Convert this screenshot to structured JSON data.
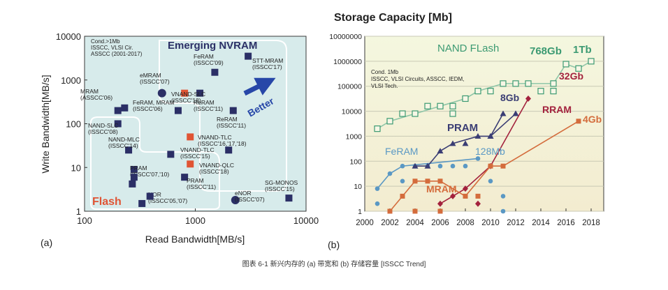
{
  "caption": "图表 6-1 新兴内存的 (a) 带宽和 (b) 存储容量 [ISSCC Trend]",
  "colors": {
    "chart_bg_a": "#d9ecec",
    "chart_bg_b": "#f8f6da",
    "region_line": "#ffffff",
    "navy": "#2b2f66",
    "red": "#e05434",
    "blue": "#2747a8",
    "green": "#3c9a72",
    "greenline": "#8fc6a8",
    "lightblue": "#5a98c4",
    "rram": "#a3223d",
    "mram": "#d46c3c",
    "pram": "#3a3d74"
  },
  "chart_data": [
    {
      "type": "scatter",
      "panel_label": "(a)",
      "xlabel": "Read Bandwidth[MB/s]",
      "ylabel": "Write Bandwidth[MB/s]",
      "xscale": "log",
      "yscale": "log",
      "xlim": [
        100,
        10000
      ],
      "ylim": [
        1,
        10000
      ],
      "xticks": [
        "100",
        "1000",
        "10000"
      ],
      "yticks": [
        "1",
        "10",
        "100",
        "1000",
        "10000"
      ],
      "note": [
        "Cond.>1Mb",
        "ISSCC, VLSI Cir.",
        "ASSCC (2001-2017)"
      ],
      "regions": [
        "Emerging NVRAM",
        "Flash"
      ],
      "arrow_label": "Better",
      "points": [
        {
          "x": 230,
          "y": 230,
          "shape": "square",
          "color": "navy",
          "label": [
            "MRAM",
            "(ASSCC'06)"
          ],
          "lx": 115,
          "ly": 134
        },
        {
          "x": 200,
          "y": 200,
          "shape": "square",
          "color": "navy"
        },
        {
          "x": 200,
          "y": 100,
          "shape": "square",
          "color": "navy",
          "label": [
            "NAND-SLC",
            "(ISSCC'08)"
          ],
          "lx": 126,
          "ly": 183
        },
        {
          "x": 250,
          "y": 25,
          "shape": "square",
          "color": "navy",
          "label": [
            "NAND-MLC",
            "(ISSCC'14)"
          ],
          "lx": 155,
          "ly": 203
        },
        {
          "x": 280,
          "y": 9,
          "shape": "square",
          "color": "navy",
          "label": [
            "PRAM",
            "(ISSCC'07,'10)"
          ],
          "lx": 186,
          "ly": 244
        },
        {
          "x": 280,
          "y": 6,
          "shape": "square",
          "color": "navy"
        },
        {
          "x": 270,
          "y": 4.2,
          "shape": "square",
          "color": "navy"
        },
        {
          "x": 330,
          "y": 1.5,
          "shape": "square",
          "color": "navy",
          "label": [
            "NOR",
            "(ISSCC'05,'07)"
          ],
          "lx": 212,
          "ly": 282
        },
        {
          "x": 390,
          "y": 2.2,
          "shape": "square",
          "color": "navy"
        },
        {
          "x": 500,
          "y": 500,
          "shape": "circle",
          "color": "navy",
          "label": [
            "eMRAM",
            "(ISSCC'07)"
          ],
          "lx": 200,
          "ly": 111
        },
        {
          "x": 800,
          "y": 500,
          "shape": "square",
          "color": "red",
          "label": [
            "FeRAM, MRAM",
            "(ISSCC'06)"
          ],
          "lx": 190,
          "ly": 150
        },
        {
          "x": 1500,
          "y": 1500,
          "shape": "square",
          "color": "navy",
          "label": [
            "FeRAM",
            "(ISSCC'09)"
          ],
          "lx": 277,
          "ly": 84
        },
        {
          "x": 1100,
          "y": 500,
          "shape": "square",
          "color": "navy",
          "label": [
            "VNAND-SLC",
            "(ISSCC'18)"
          ],
          "lx": 245,
          "ly": 138
        },
        {
          "x": 700,
          "y": 200,
          "shape": "square",
          "color": "navy",
          "label": [
            "ReRAM",
            "(ISSCC'11)"
          ],
          "lx": 277,
          "ly": 150
        },
        {
          "x": 2200,
          "y": 200,
          "shape": "square",
          "color": "navy",
          "label": [
            "ReRAM",
            "(ISSCC'11)"
          ],
          "lx": 310,
          "ly": 174
        },
        {
          "x": 3000,
          "y": 3500,
          "shape": "square",
          "color": "navy",
          "label": [
            "STT-MRAM",
            "(ISSCC'17)"
          ],
          "lx": 361,
          "ly": 90
        },
        {
          "x": 900,
          "y": 50,
          "shape": "square",
          "color": "red",
          "label": [
            "VNAND-TLC",
            "(ISSCC'16,'17,'18)"
          ],
          "lx": 283,
          "ly": 200
        },
        {
          "x": 2000,
          "y": 25,
          "shape": "square",
          "color": "navy"
        },
        {
          "x": 600,
          "y": 20,
          "shape": "square",
          "color": "navy",
          "label": [
            "VNAND-TLC",
            "(ISSCC'15)"
          ],
          "lx": 258,
          "ly": 218
        },
        {
          "x": 900,
          "y": 12,
          "shape": "square",
          "color": "red",
          "label": [
            "VNAND-QLC",
            "(ISSCC'18)"
          ],
          "lx": 285,
          "ly": 240
        },
        {
          "x": 800,
          "y": 6,
          "shape": "square",
          "color": "navy",
          "label": [
            "PRAM",
            "(ISSCC'11)"
          ],
          "lx": 267,
          "ly": 262
        },
        {
          "x": 2300,
          "y": 1.8,
          "shape": "circle",
          "color": "navy",
          "label": [
            "eNOR",
            "(ISSCC'07)"
          ],
          "lx": 336,
          "ly": 280
        },
        {
          "x": 7000,
          "y": 2,
          "shape": "square",
          "color": "navy",
          "label": [
            "SG-MONOS",
            "(ISSCC'15)"
          ],
          "lx": 379,
          "ly": 265
        }
      ]
    },
    {
      "type": "line",
      "panel_label": "(b)",
      "title": "Storage Capacity [Mb]",
      "xlabel": "",
      "ylabel": "",
      "xscale": "linear",
      "yscale": "log",
      "xlim": [
        2000,
        2019
      ],
      "ylim": [
        1,
        10000000
      ],
      "xticks": [
        "2000",
        "2002",
        "2004",
        "2006",
        "2008",
        "2010",
        "2012",
        "2014",
        "2016",
        "2018"
      ],
      "yticks": [
        "1",
        "10",
        "100",
        "1000",
        "10000",
        "100000",
        "1000000",
        "10000000"
      ],
      "note": [
        "Cond. 1Mb",
        "ISSCC, VLSI Circuits, ASSCC, IEDM,",
        "VLSI Tech."
      ],
      "annotations": [
        {
          "text": "NAND FLash",
          "color": "green"
        },
        {
          "text": "768Gb",
          "color": "green"
        },
        {
          "text": "1Tb",
          "color": "green"
        },
        {
          "text": "32Gb",
          "color": "rram"
        },
        {
          "text": "8Gb",
          "color": "pram"
        },
        {
          "text": "RRAM",
          "color": "rram"
        },
        {
          "text": "4Gb",
          "color": "mram"
        },
        {
          "text": "PRAM",
          "color": "pram"
        },
        {
          "text": "FeRAM",
          "color": "lightblue"
        },
        {
          "text": "128Mb",
          "color": "lightblue"
        },
        {
          "text": "MRAM",
          "color": "mram"
        }
      ],
      "series": [
        {
          "key": "nand",
          "color": "green",
          "marker": "hollow-square",
          "points": [
            [
              2001,
              2000
            ],
            [
              2002,
              4000
            ],
            [
              2003,
              8000
            ],
            [
              2004,
              8000
            ],
            [
              2005,
              16000
            ],
            [
              2006,
              16000
            ],
            [
              2007,
              16000
            ],
            [
              2007,
              8000
            ],
            [
              2008,
              32000
            ],
            [
              2009,
              64000
            ],
            [
              2010,
              64000
            ],
            [
              2011,
              128000
            ],
            [
              2012,
              128000
            ],
            [
              2013,
              128000
            ],
            [
              2014,
              64000
            ],
            [
              2015,
              128000
            ],
            [
              2015,
              64000
            ],
            [
              2016,
              768000
            ],
            [
              2017,
              512000
            ],
            [
              2018,
              1000000
            ]
          ],
          "trend": [
            [
              2001,
              2000
            ],
            [
              2002,
              4000
            ],
            [
              2004,
              8000
            ],
            [
              2006,
              16000
            ],
            [
              2008,
              32000
            ],
            [
              2009,
              64000
            ],
            [
              2011,
              128000
            ],
            [
              2013,
              128000
            ],
            [
              2015,
              128000
            ],
            [
              2016,
              768000
            ],
            [
              2017,
              512000
            ],
            [
              2018,
              1000000
            ]
          ]
        },
        {
          "key": "feram",
          "color": "lightblue",
          "marker": "circle",
          "points": [
            [
              2001,
              8
            ],
            [
              2001,
              2
            ],
            [
              2002,
              32
            ],
            [
              2002,
              1
            ],
            [
              2003,
              64
            ],
            [
              2003,
              16
            ],
            [
              2004,
              64
            ],
            [
              2004,
              16
            ],
            [
              2005,
              64
            ],
            [
              2006,
              64
            ],
            [
              2007,
              64
            ],
            [
              2008,
              64
            ],
            [
              2009,
              128
            ],
            [
              2010,
              16
            ],
            [
              2011,
              4
            ],
            [
              2011,
              1
            ]
          ],
          "trend": [
            [
              2001,
              8
            ],
            [
              2002,
              32
            ],
            [
              2003,
              64
            ],
            [
              2009,
              128
            ]
          ]
        },
        {
          "key": "pram",
          "color": "pram",
          "marker": "triangle",
          "points": [
            [
              2004,
              64
            ],
            [
              2005,
              64
            ],
            [
              2006,
              256
            ],
            [
              2007,
              512
            ],
            [
              2008,
              512
            ],
            [
              2009,
              1000
            ],
            [
              2010,
              1000
            ],
            [
              2011,
              8000
            ],
            [
              2012,
              8000
            ]
          ],
          "trend": [
            [
              2004,
              64
            ],
            [
              2005,
              64
            ],
            [
              2006,
              256
            ],
            [
              2007,
              512
            ],
            [
              2009,
              1000
            ],
            [
              2010,
              1000
            ],
            [
              2011,
              8000
            ]
          ]
        },
        {
          "key": "pram2",
          "color": "pram",
          "marker": "triangle",
          "points": [
            [
              2010,
              1000
            ],
            [
              2012,
              8000
            ]
          ],
          "trend": [
            [
              2010,
              1000
            ],
            [
              2012,
              8000
            ]
          ]
        },
        {
          "key": "rram",
          "color": "rram",
          "marker": "diamond",
          "points": [
            [
              2006,
              2
            ],
            [
              2007,
              4
            ],
            [
              2008,
              8
            ],
            [
              2009,
              2
            ],
            [
              2010,
              64
            ],
            [
              2013,
              32000
            ]
          ],
          "trend": [
            [
              2006,
              2
            ],
            [
              2007,
              4
            ],
            [
              2008,
              8
            ],
            [
              2010,
              64
            ],
            [
              2013,
              32000
            ]
          ]
        },
        {
          "key": "mram",
          "color": "mram",
          "marker": "square",
          "points": [
            [
              2002,
              1
            ],
            [
              2003,
              4
            ],
            [
              2004,
              16
            ],
            [
              2005,
              16
            ],
            [
              2006,
              16
            ],
            [
              2004,
              1
            ],
            [
              2006,
              1
            ],
            [
              2008,
              4
            ],
            [
              2009,
              4
            ],
            [
              2010,
              64
            ],
            [
              2011,
              64
            ],
            [
              2017,
              4000
            ]
          ],
          "trend": [
            [
              2002,
              1
            ],
            [
              2003,
              4
            ],
            [
              2004,
              16
            ],
            [
              2006,
              16
            ],
            [
              2008,
              4
            ],
            [
              2010,
              64
            ],
            [
              2011,
              64
            ],
            [
              2017,
              4000
            ]
          ]
        }
      ]
    }
  ]
}
